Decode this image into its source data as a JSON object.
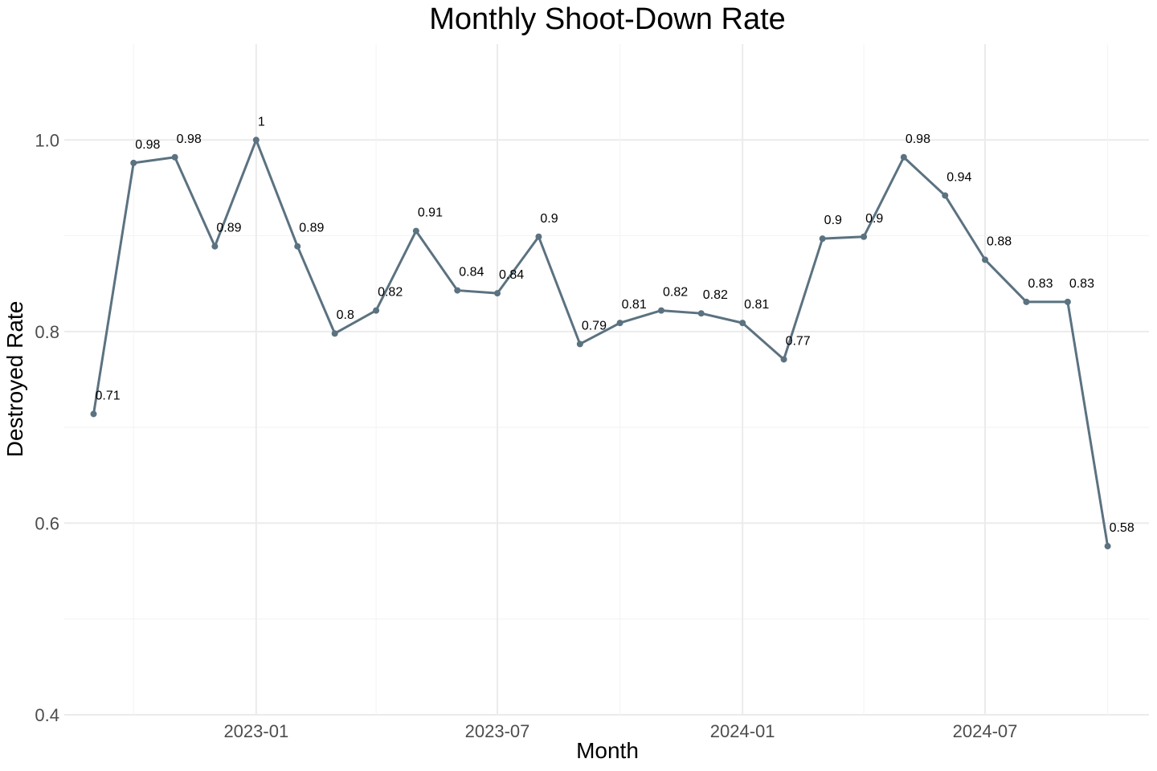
{
  "chart_data": {
    "type": "line",
    "title": "Monthly Shoot-Down Rate",
    "xlabel": "Month",
    "ylabel": "Destroyed Rate",
    "x": [
      "2022-09",
      "2022-10",
      "2022-11",
      "2022-12",
      "2023-01",
      "2023-02",
      "2023-03",
      "2023-04",
      "2023-05",
      "2023-06",
      "2023-07",
      "2023-08",
      "2023-09",
      "2023-10",
      "2023-11",
      "2023-12",
      "2024-01",
      "2024-02",
      "2024-03",
      "2024-04",
      "2024-05",
      "2024-06",
      "2024-07",
      "2024-08",
      "2024-09",
      "2024-10"
    ],
    "series": [
      {
        "values": [
          0.714,
          0.976,
          0.982,
          0.889,
          1.0,
          0.889,
          0.798,
          0.822,
          0.905,
          0.843,
          0.84,
          0.899,
          0.787,
          0.809,
          0.822,
          0.819,
          0.809,
          0.771,
          0.897,
          0.899,
          0.982,
          0.942,
          0.875,
          0.831,
          0.831,
          0.576
        ],
        "labels": [
          "0.71",
          "0.98",
          "0.98",
          "0.89",
          "1",
          "0.89",
          "0.8",
          "0.82",
          "0.91",
          "0.84",
          "0.84",
          "0.9",
          "0.79",
          "0.81",
          "0.82",
          "0.82",
          "0.81",
          "0.77",
          "0.9",
          "0.9",
          "0.98",
          "0.94",
          "0.88",
          "0.83",
          "0.83",
          "0.58"
        ],
        "color": "#5b7280"
      }
    ],
    "ylim": [
      0.4,
      1.1
    ],
    "yticks": [
      0.4,
      0.6,
      0.8,
      1.0
    ],
    "ytick_labels": [
      "0.4",
      "0.6",
      "0.8",
      "1.0"
    ],
    "xticks": [
      "2023-01",
      "2023-07",
      "2024-01",
      "2024-07"
    ],
    "xtick_labels": [
      "2023-01",
      "2023-07",
      "2024-01",
      "2024-07"
    ],
    "xlim": [
      "2022-08-10",
      "2024-11-01"
    ],
    "grid": true,
    "legend": "none"
  }
}
